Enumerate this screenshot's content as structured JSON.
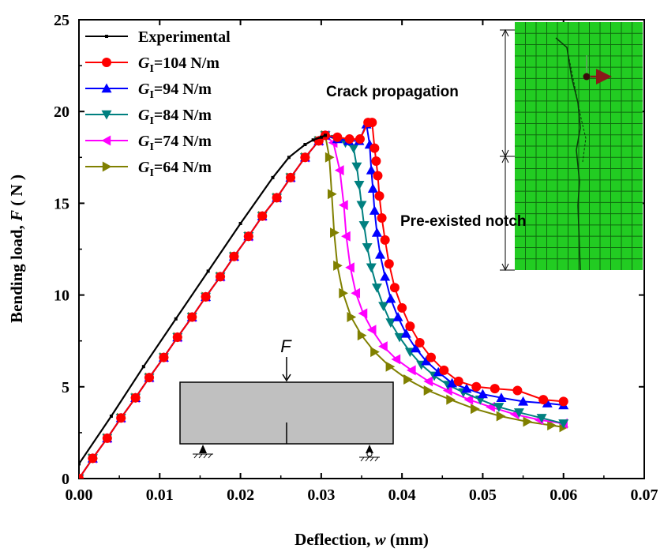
{
  "chart_data": {
    "type": "line",
    "xlabel": "Deflection, w (mm)",
    "xlabel_parts": [
      "Deflection, ",
      "w",
      " (mm)"
    ],
    "ylabel": "Bending load, F ( N )",
    "ylabel_parts": [
      "Bending load, ",
      "F",
      " ( N )"
    ],
    "xlim": [
      0,
      0.07
    ],
    "ylim": [
      0,
      25
    ],
    "xticks": [
      0,
      0.01,
      0.02,
      0.03,
      0.04,
      0.05,
      0.06,
      0.07
    ],
    "xtick_labels": [
      "0.00",
      "0.01",
      "0.02",
      "0.03",
      "0.04",
      "0.05",
      "0.06",
      "0.07"
    ],
    "yticks": [
      0,
      5,
      10,
      15,
      20,
      25
    ],
    "ytick_labels": [
      "0",
      "5",
      "10",
      "15",
      "20",
      "25"
    ],
    "legend_position": "top-left",
    "grid": false,
    "series": [
      {
        "name": "Experimental",
        "legend_main": "Experimental",
        "legend_sub": "",
        "legend_rest": "",
        "color": "#000000",
        "marker": "dot",
        "x": [
          0,
          0.004,
          0.008,
          0.012,
          0.016,
          0.02,
          0.024,
          0.026,
          0.028,
          0.029,
          0.03,
          0.0305
        ],
        "y": [
          0.8,
          3.4,
          6.1,
          8.7,
          11.3,
          13.9,
          16.4,
          17.5,
          18.2,
          18.45,
          18.6,
          18.7
        ]
      },
      {
        "name": "GI=104 N/m",
        "legend_main": "G",
        "legend_sub": "I",
        "legend_rest": "=104 N/m",
        "color": "#ff0000",
        "marker": "circle",
        "x": [
          0,
          0.0017,
          0.0035,
          0.0052,
          0.007,
          0.0087,
          0.0105,
          0.0122,
          0.014,
          0.0157,
          0.0175,
          0.0192,
          0.021,
          0.0227,
          0.0245,
          0.0262,
          0.028,
          0.0297,
          0.0305,
          0.032,
          0.0335,
          0.0348,
          0.0358,
          0.0363,
          0.0366,
          0.0368,
          0.037,
          0.0372,
          0.0375,
          0.0379,
          0.0384,
          0.0391,
          0.04,
          0.041,
          0.0422,
          0.0436,
          0.0452,
          0.047,
          0.0492,
          0.0515,
          0.0543,
          0.0575,
          0.06
        ],
        "y": [
          0,
          1.1,
          2.2,
          3.3,
          4.4,
          5.5,
          6.6,
          7.7,
          8.8,
          9.9,
          11.0,
          12.1,
          13.2,
          14.3,
          15.3,
          16.4,
          17.5,
          18.4,
          18.7,
          18.6,
          18.5,
          18.5,
          19.4,
          19.4,
          18.0,
          17.3,
          16.5,
          15.4,
          14.2,
          13.0,
          11.7,
          10.4,
          9.3,
          8.3,
          7.4,
          6.6,
          5.9,
          5.3,
          5.0,
          4.9,
          4.8,
          4.3,
          4.2
        ]
      },
      {
        "name": "GI=94 N/m",
        "legend_main": "G",
        "legend_sub": "I",
        "legend_rest": "=94 N/m",
        "color": "#0000ff",
        "marker": "triangle-up",
        "x": [
          0,
          0.0017,
          0.0035,
          0.0052,
          0.007,
          0.0087,
          0.0105,
          0.0122,
          0.014,
          0.0157,
          0.0175,
          0.0192,
          0.021,
          0.0227,
          0.0245,
          0.0262,
          0.028,
          0.0297,
          0.0305,
          0.032,
          0.0334,
          0.0347,
          0.0356,
          0.036,
          0.0362,
          0.0364,
          0.0366,
          0.0369,
          0.0373,
          0.0379,
          0.0386,
          0.0395,
          0.0405,
          0.0417,
          0.043,
          0.0445,
          0.0462,
          0.048,
          0.05,
          0.0523,
          0.055,
          0.058,
          0.06
        ],
        "y": [
          0,
          1.1,
          2.2,
          3.3,
          4.4,
          5.5,
          6.6,
          7.7,
          8.8,
          9.9,
          11.0,
          12.1,
          13.2,
          14.3,
          15.3,
          16.4,
          17.5,
          18.4,
          18.7,
          18.5,
          18.4,
          18.4,
          19.3,
          18.2,
          16.8,
          15.8,
          14.6,
          13.4,
          12.2,
          11.0,
          9.8,
          8.8,
          7.9,
          7.1,
          6.4,
          5.8,
          5.2,
          4.9,
          4.6,
          4.4,
          4.2,
          4.1,
          4.0
        ]
      },
      {
        "name": "GI=84 N/m",
        "legend_main": "G",
        "legend_sub": "I",
        "legend_rest": "=84 N/m",
        "color": "#008080",
        "marker": "triangle-down",
        "x": [
          0,
          0.0017,
          0.0035,
          0.0052,
          0.007,
          0.0087,
          0.0105,
          0.0122,
          0.014,
          0.0157,
          0.0175,
          0.0192,
          0.021,
          0.0227,
          0.0245,
          0.0262,
          0.028,
          0.0297,
          0.0305,
          0.0318,
          0.033,
          0.034,
          0.0344,
          0.0347,
          0.035,
          0.0353,
          0.0357,
          0.0362,
          0.0369,
          0.0377,
          0.0386,
          0.0397,
          0.041,
          0.0424,
          0.044,
          0.0457,
          0.0476,
          0.0497,
          0.052,
          0.0545,
          0.0573,
          0.06
        ],
        "y": [
          0,
          1.1,
          2.2,
          3.3,
          4.4,
          5.5,
          6.6,
          7.7,
          8.8,
          9.9,
          11.0,
          12.1,
          13.2,
          14.3,
          15.3,
          16.4,
          17.5,
          18.4,
          18.7,
          18.5,
          18.3,
          18.0,
          17.0,
          16.0,
          14.9,
          13.8,
          12.6,
          11.5,
          10.4,
          9.4,
          8.5,
          7.7,
          6.9,
          6.2,
          5.6,
          5.1,
          4.7,
          4.3,
          3.9,
          3.6,
          3.3,
          3.0
        ]
      },
      {
        "name": "GI=74 N/m",
        "legend_main": "G",
        "legend_sub": "I",
        "legend_rest": "=74 N/m",
        "color": "#ff00ff",
        "marker": "triangle-left",
        "x": [
          0,
          0.0017,
          0.0035,
          0.0052,
          0.007,
          0.0087,
          0.0105,
          0.0122,
          0.014,
          0.0157,
          0.0175,
          0.0192,
          0.021,
          0.0227,
          0.0245,
          0.0262,
          0.028,
          0.0297,
          0.0305,
          0.0315,
          0.0323,
          0.0328,
          0.0331,
          0.0336,
          0.0343,
          0.0352,
          0.0363,
          0.0377,
          0.0393,
          0.0412,
          0.0433,
          0.0457,
          0.0483,
          0.051,
          0.054,
          0.057,
          0.06
        ],
        "y": [
          0,
          1.1,
          2.2,
          3.3,
          4.4,
          5.5,
          6.6,
          7.7,
          8.8,
          9.9,
          11.0,
          12.1,
          13.2,
          14.3,
          15.3,
          16.4,
          17.5,
          18.4,
          18.7,
          18.3,
          16.8,
          14.9,
          13.2,
          11.5,
          10.1,
          9.0,
          8.1,
          7.2,
          6.5,
          5.9,
          5.3,
          4.8,
          4.3,
          3.9,
          3.5,
          3.2,
          3.0
        ]
      },
      {
        "name": "GI=64 N/m",
        "legend_main": "G",
        "legend_sub": "I",
        "legend_rest": "=64 N/m",
        "color": "#808000",
        "marker": "triangle-right",
        "x": [
          0,
          0.0017,
          0.0035,
          0.0052,
          0.007,
          0.0087,
          0.0105,
          0.0122,
          0.014,
          0.0157,
          0.0175,
          0.0192,
          0.021,
          0.0227,
          0.0245,
          0.0262,
          0.028,
          0.0297,
          0.0305,
          0.031,
          0.0313,
          0.0316,
          0.032,
          0.0327,
          0.0337,
          0.035,
          0.0366,
          0.0385,
          0.0407,
          0.0432,
          0.046,
          0.049,
          0.0522,
          0.0555,
          0.0585,
          0.06
        ],
        "y": [
          0,
          1.1,
          2.2,
          3.3,
          4.4,
          5.5,
          6.6,
          7.7,
          8.8,
          9.9,
          11.0,
          12.1,
          13.2,
          14.3,
          15.3,
          16.4,
          17.5,
          18.4,
          18.7,
          17.5,
          15.5,
          13.4,
          11.6,
          10.1,
          8.8,
          7.8,
          6.9,
          6.1,
          5.4,
          4.8,
          4.3,
          3.8,
          3.4,
          3.1,
          2.9,
          2.8
        ]
      }
    ],
    "annotations": {
      "crack_propagation": "Crack propagation",
      "pre_existed_notch": "Pre-existed notch",
      "load_label": "F"
    }
  },
  "colors": {
    "mesh_fill": "#22cc22",
    "mesh_line": "#0f6a0f",
    "beam_fill": "#c0c0c0",
    "arrow": "#8b1a1a"
  }
}
